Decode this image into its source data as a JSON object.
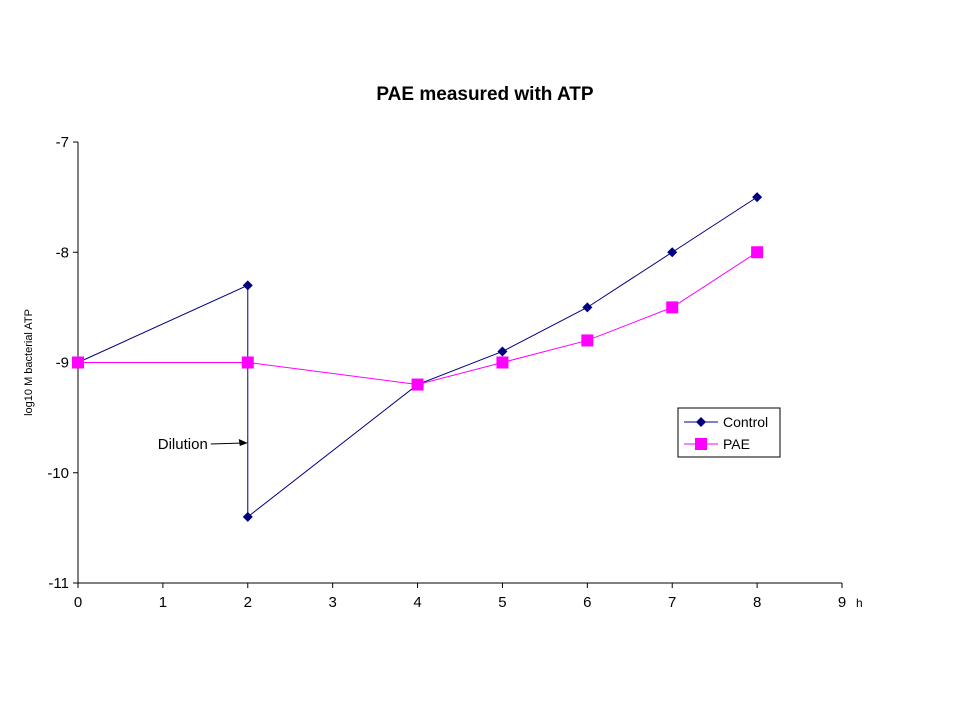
{
  "chart_data": {
    "type": "line",
    "title": "PAE measured with ATP",
    "ylabel": "log10 M bacterial ATP",
    "xlabel": "h",
    "xlim": [
      0,
      9
    ],
    "ylim": [
      -11,
      -7
    ],
    "xticks": [
      0,
      1,
      2,
      3,
      4,
      5,
      6,
      7,
      8,
      9
    ],
    "yticks": [
      -11,
      -10,
      -9,
      -8,
      -7
    ],
    "grid": false,
    "legend_position": "right",
    "series": [
      {
        "name": "Control",
        "color": "#000080",
        "marker": "diamond",
        "points": [
          [
            0,
            -9
          ],
          [
            2,
            -8.3
          ],
          [
            2,
            -10.4
          ],
          [
            4,
            -9.2
          ],
          [
            5,
            -8.9
          ],
          [
            6,
            -8.5
          ],
          [
            7,
            -8.0
          ],
          [
            8,
            -7.5
          ]
        ]
      },
      {
        "name": "PAE",
        "color": "#ff00ff",
        "marker": "square",
        "points": [
          [
            0,
            -9
          ],
          [
            2,
            -9
          ],
          [
            4,
            -9.2
          ],
          [
            5,
            -9
          ],
          [
            6,
            -8.8
          ],
          [
            7,
            -8.5
          ],
          [
            8,
            -8.0
          ]
        ]
      }
    ],
    "annotations": [
      {
        "text": "Dilution",
        "x": 2,
        "y": -9.73
      }
    ]
  }
}
